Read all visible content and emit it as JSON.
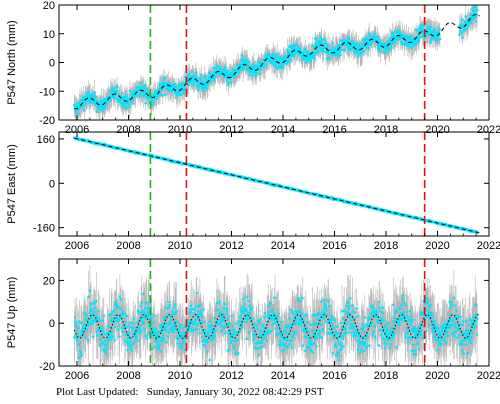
{
  "footer": {
    "label": "Plot Last Updated:",
    "timestamp": "Sunday, January 30, 2022 08:42:29 PST"
  },
  "colors": {
    "data": "#00e5ff",
    "errorbar": "#b4b4b4",
    "model": "#000000",
    "green_line": "#19b219",
    "red_line": "#e01010"
  },
  "chart_data": [
    {
      "type": "scatter",
      "ylabel": "P547 North (mm)",
      "xlim": [
        2005.3,
        2022.0
      ],
      "ylim": [
        -20,
        20
      ],
      "xticks": [
        2006,
        2008,
        2010,
        2012,
        2014,
        2016,
        2018,
        2020,
        2022
      ],
      "yticks": [
        -20,
        -10,
        0,
        10,
        20
      ],
      "series": [
        {
          "role": "observations",
          "style": "points with error bars",
          "color": "#00e5ff",
          "x_range": [
            2005.9,
            2021.55
          ],
          "y_approx_start": -15,
          "y_approx_end": 13,
          "gap": [
            2020.1,
            2020.85
          ]
        },
        {
          "role": "model",
          "style": "dashed",
          "color": "#000000",
          "x": [
            2006.0,
            2009.0,
            2012.0,
            2015.0,
            2018.0,
            2019.5,
            2021.6
          ],
          "y": [
            -14.5,
            -10.5,
            -3.5,
            4.0,
            7.0,
            9.5,
            15.5
          ]
        }
      ],
      "vlines": [
        {
          "x": 2008.85,
          "color": "green",
          "style": "dashed"
        },
        {
          "x": 2010.25,
          "color": "red",
          "style": "dashed"
        },
        {
          "x": 2019.5,
          "color": "red",
          "style": "dashed"
        }
      ]
    },
    {
      "type": "scatter",
      "ylabel": "P547 East (mm)",
      "xlim": [
        2005.3,
        2022.0
      ],
      "ylim": [
        -190,
        185
      ],
      "xticks": [
        2006,
        2008,
        2010,
        2012,
        2014,
        2016,
        2018,
        2020,
        2022
      ],
      "yticks": [
        -160,
        0,
        160
      ],
      "series": [
        {
          "role": "observations",
          "style": "points with error bars",
          "color": "#00e5ff",
          "x_range": [
            2005.9,
            2021.55
          ],
          "y_approx_start": 160,
          "y_approx_end": -175
        },
        {
          "role": "model",
          "style": "dashed",
          "color": "#000000",
          "x": [
            2006.0,
            2021.6
          ],
          "y": [
            161,
            -178
          ]
        }
      ],
      "vlines": [
        {
          "x": 2008.85,
          "color": "green",
          "style": "dashed"
        },
        {
          "x": 2010.25,
          "color": "red",
          "style": "dashed"
        },
        {
          "x": 2019.5,
          "color": "red",
          "style": "dashed"
        }
      ]
    },
    {
      "type": "scatter",
      "ylabel": "P547 Up (mm)",
      "xlim": [
        2005.3,
        2022.0
      ],
      "ylim": [
        -20,
        30
      ],
      "xticks": [
        2006,
        2008,
        2010,
        2012,
        2014,
        2016,
        2018,
        2020,
        2022
      ],
      "yticks": [
        -20,
        0,
        20
      ],
      "series": [
        {
          "role": "observations",
          "style": "points with error bars",
          "color": "#00e5ff",
          "x_range": [
            2005.9,
            2021.55
          ],
          "y_center": 0,
          "y_scatter": 8
        },
        {
          "role": "model",
          "style": "dotted seasonal",
          "color": "#000000",
          "mean": -1.5,
          "annual_amplitude": 5.5
        }
      ],
      "vlines": [
        {
          "x": 2008.85,
          "color": "green",
          "style": "dashed"
        },
        {
          "x": 2010.25,
          "color": "red",
          "style": "dashed"
        },
        {
          "x": 2019.5,
          "color": "red",
          "style": "dashed"
        }
      ]
    }
  ]
}
